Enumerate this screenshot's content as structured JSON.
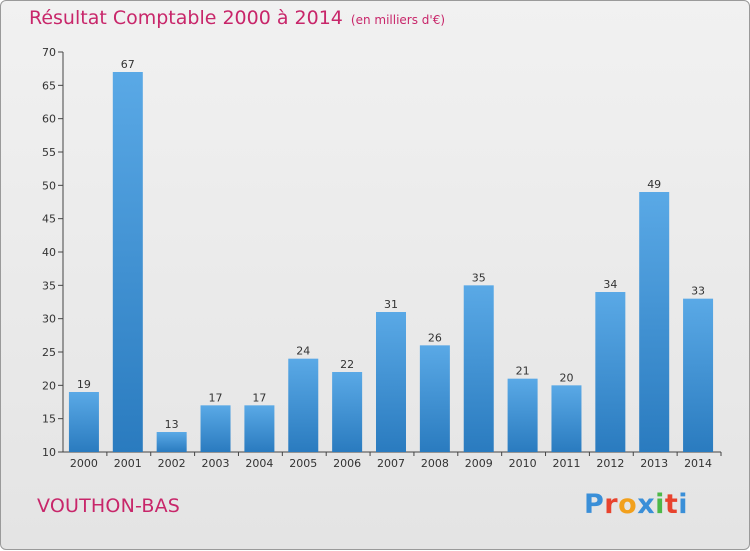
{
  "title": "Résultat Comptable 2000 à 2014",
  "unit_label": "(en milliers d'€)",
  "commune": "VOUTHON-BAS",
  "brand": {
    "letters": [
      "P",
      "r",
      "o",
      "x",
      "i",
      "t",
      "i"
    ],
    "colors": [
      "#3a8fd8",
      "#e8432e",
      "#f2a01c",
      "#3a8fd8",
      "#4db848",
      "#e8432e",
      "#3a8fd8"
    ]
  },
  "colors": {
    "title": "#c8266a",
    "bar_top": "#5aa9e6",
    "bar_bottom": "#2a7bbf"
  },
  "chart_data": {
    "type": "bar",
    "categories": [
      "2000",
      "2001",
      "2002",
      "2003",
      "2004",
      "2005",
      "2006",
      "2007",
      "2008",
      "2009",
      "2010",
      "2011",
      "2012",
      "2013",
      "2014"
    ],
    "values": [
      19,
      67,
      13,
      17,
      17,
      24,
      22,
      31,
      26,
      35,
      21,
      20,
      34,
      49,
      33
    ],
    "ylim": [
      10,
      70
    ],
    "yticks": [
      10,
      15,
      20,
      25,
      30,
      35,
      40,
      45,
      50,
      55,
      60,
      65,
      70
    ],
    "grid": false,
    "xlabel": "",
    "ylabel": ""
  }
}
